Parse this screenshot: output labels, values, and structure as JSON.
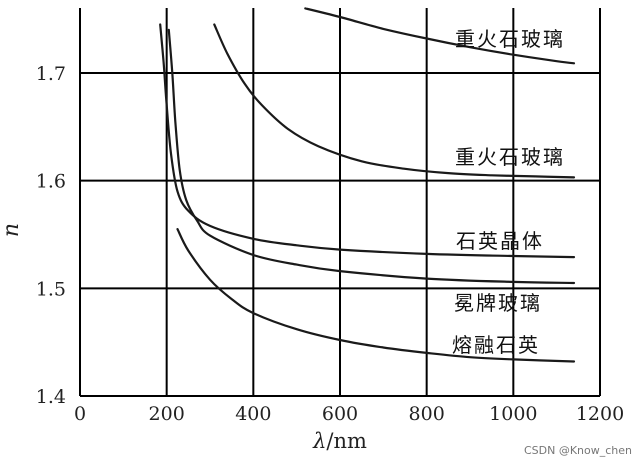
{
  "watermark": "CSDN @Know_chen",
  "chart_data": {
    "type": "line",
    "xlabel_prefix": "λ",
    "xlabel_suffix": "/nm",
    "ylabel": "n",
    "xlim": [
      0,
      1200
    ],
    "ylim": [
      1.4,
      1.76
    ],
    "x_ticks": [
      "0",
      "200",
      "400",
      "600",
      "800",
      "1000",
      "1200"
    ],
    "y_ticks": [
      "1.4",
      "1.5",
      "1.6",
      "1.7"
    ],
    "grid": true,
    "series": [
      {
        "name": "重火石玻璃",
        "x": [
          520,
          600,
          700,
          800,
          900,
          1000,
          1100,
          1140
        ],
        "y": [
          1.76,
          1.752,
          1.741,
          1.732,
          1.724,
          1.717,
          1.711,
          1.709
        ]
      },
      {
        "name": "重火石玻璃",
        "x": [
          310,
          340,
          380,
          420,
          480,
          550,
          650,
          750,
          850,
          950,
          1050,
          1140
        ],
        "y": [
          1.745,
          1.718,
          1.69,
          1.67,
          1.648,
          1.632,
          1.618,
          1.611,
          1.607,
          1.605,
          1.604,
          1.603
        ]
      },
      {
        "name": "石英晶体",
        "x": [
          185,
          193,
          200,
          210,
          225,
          250,
          300,
          400,
          500,
          600,
          800,
          1000,
          1140
        ],
        "y": [
          1.745,
          1.71,
          1.67,
          1.625,
          1.59,
          1.572,
          1.558,
          1.546,
          1.54,
          1.536,
          1.532,
          1.53,
          1.529
        ]
      },
      {
        "name": "冕牌玻璃",
        "x": [
          205,
          213,
          220,
          230,
          245,
          270,
          300,
          400,
          500,
          600,
          800,
          1000,
          1140
        ],
        "y": [
          1.74,
          1.7,
          1.655,
          1.61,
          1.582,
          1.563,
          1.549,
          1.531,
          1.522,
          1.516,
          1.509,
          1.506,
          1.505
        ]
      },
      {
        "name": "熔融石英",
        "x": [
          225,
          250,
          300,
          350,
          400,
          500,
          600,
          700,
          800,
          900,
          1000,
          1140
        ],
        "y": [
          1.555,
          1.535,
          1.508,
          1.49,
          1.477,
          1.462,
          1.452,
          1.445,
          1.44,
          1.436,
          1.434,
          1.432
        ]
      }
    ],
    "labels": [
      {
        "text": "重火石玻璃",
        "series": 0
      },
      {
        "text": "重火石玻璃",
        "series": 1
      },
      {
        "text": "石英晶体",
        "series": 2
      },
      {
        "text": "冕牌玻璃",
        "series": 3
      },
      {
        "text": "熔融石英",
        "series": 4
      }
    ]
  }
}
